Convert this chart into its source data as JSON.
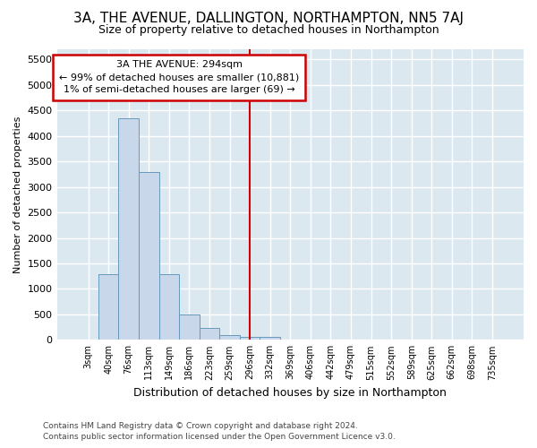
{
  "title": "3A, THE AVENUE, DALLINGTON, NORTHAMPTON, NN5 7AJ",
  "subtitle": "Size of property relative to detached houses in Northampton",
  "xlabel": "Distribution of detached houses by size in Northampton",
  "ylabel": "Number of detached properties",
  "bar_color": "#c8d8ea",
  "bar_edge_color": "#6699bb",
  "background_color": "#dce8f0",
  "grid_color": "#ffffff",
  "vline_color": "#cc0000",
  "vline_x_idx": 8,
  "annotation_line1": "3A THE AVENUE: 294sqm",
  "annotation_line2": "← 99% of detached houses are smaller (10,881)",
  "annotation_line3": "1% of semi-detached houses are larger (69) →",
  "annotation_box_edgecolor": "#cc0000",
  "footnote1": "Contains HM Land Registry data © Crown copyright and database right 2024.",
  "footnote2": "Contains public sector information licensed under the Open Government Licence v3.0.",
  "categories": [
    "3sqm",
    "40sqm",
    "76sqm",
    "113sqm",
    "149sqm",
    "186sqm",
    "223sqm",
    "259sqm",
    "296sqm",
    "332sqm",
    "369sqm",
    "406sqm",
    "442sqm",
    "479sqm",
    "515sqm",
    "552sqm",
    "589sqm",
    "625sqm",
    "662sqm",
    "698sqm",
    "735sqm"
  ],
  "values": [
    0,
    1280,
    4350,
    3300,
    1280,
    490,
    230,
    95,
    60,
    60,
    0,
    0,
    0,
    0,
    0,
    0,
    0,
    0,
    0,
    0,
    0
  ],
  "ylim": [
    0,
    5700
  ],
  "yticks": [
    0,
    500,
    1000,
    1500,
    2000,
    2500,
    3000,
    3500,
    4000,
    4500,
    5000,
    5500
  ],
  "fig_facecolor": "#ffffff"
}
